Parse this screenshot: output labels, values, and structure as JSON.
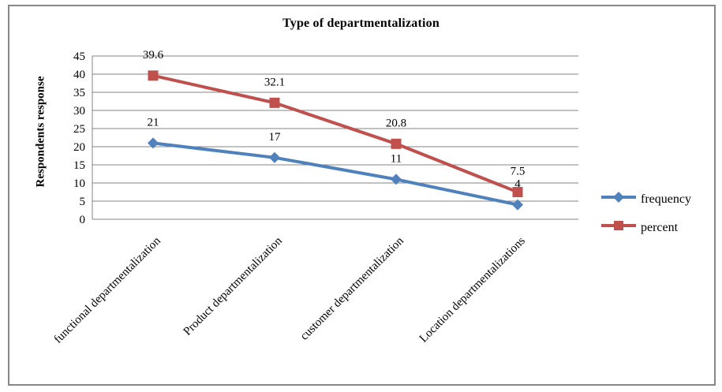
{
  "figure": {
    "background": "#ffffff",
    "border_color": "#868686",
    "text_color": "#000000",
    "gridline_color": "#868686"
  },
  "chart_data": {
    "type": "line",
    "title": "Type of departmentalization",
    "xlabel": "",
    "ylabel": "Respondents response",
    "categories": [
      "functional departmentalization",
      "Product departmentalization",
      "customer departmentalization",
      "Location departmentalizations"
    ],
    "series": [
      {
        "name": "frequency",
        "color": "#4F81BD",
        "marker": "diamond",
        "values": [
          21,
          17,
          11,
          4
        ]
      },
      {
        "name": "percent",
        "color": "#C0504D",
        "marker": "square",
        "values": [
          39.6,
          32.1,
          20.8,
          7.5
        ]
      }
    ],
    "ylim": [
      0,
      45
    ],
    "ytick_step": 5,
    "yticks": [
      0,
      5,
      10,
      15,
      20,
      25,
      30,
      35,
      40,
      45
    ],
    "grid": true,
    "data_labels": true,
    "legend_position": "right",
    "x_label_rotation_deg": 45
  }
}
